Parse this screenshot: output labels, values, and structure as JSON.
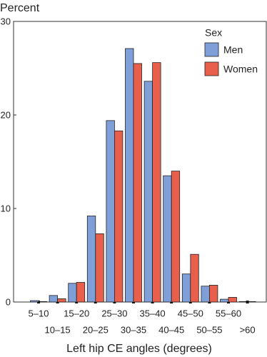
{
  "chart_data": {
    "type": "bar",
    "ylabel": "Percent",
    "xlabel": "Left hip CE angles (degrees)",
    "legend_title": "Sex",
    "legend_position": "upper right",
    "categories": [
      "5–10",
      "10–15",
      "15–20",
      "20–25",
      "25–30",
      "30–35",
      "35–40",
      "40–45",
      "45–50",
      "50–55",
      "55–60",
      ">60"
    ],
    "series": [
      {
        "name": "Men",
        "color": "#7f9fd9",
        "values": [
          0.15,
          0.7,
          2.0,
          9.2,
          19.4,
          27.1,
          23.6,
          13.5,
          3.0,
          1.7,
          0.3,
          0.05
        ]
      },
      {
        "name": "Women",
        "color": "#e8604b",
        "values": [
          0.05,
          0.35,
          2.1,
          7.3,
          18.3,
          25.5,
          25.6,
          14.0,
          5.1,
          1.8,
          0.5,
          0.05
        ]
      }
    ],
    "ylim": [
      0,
      30
    ],
    "yticks": [
      0,
      10,
      20,
      30
    ]
  }
}
